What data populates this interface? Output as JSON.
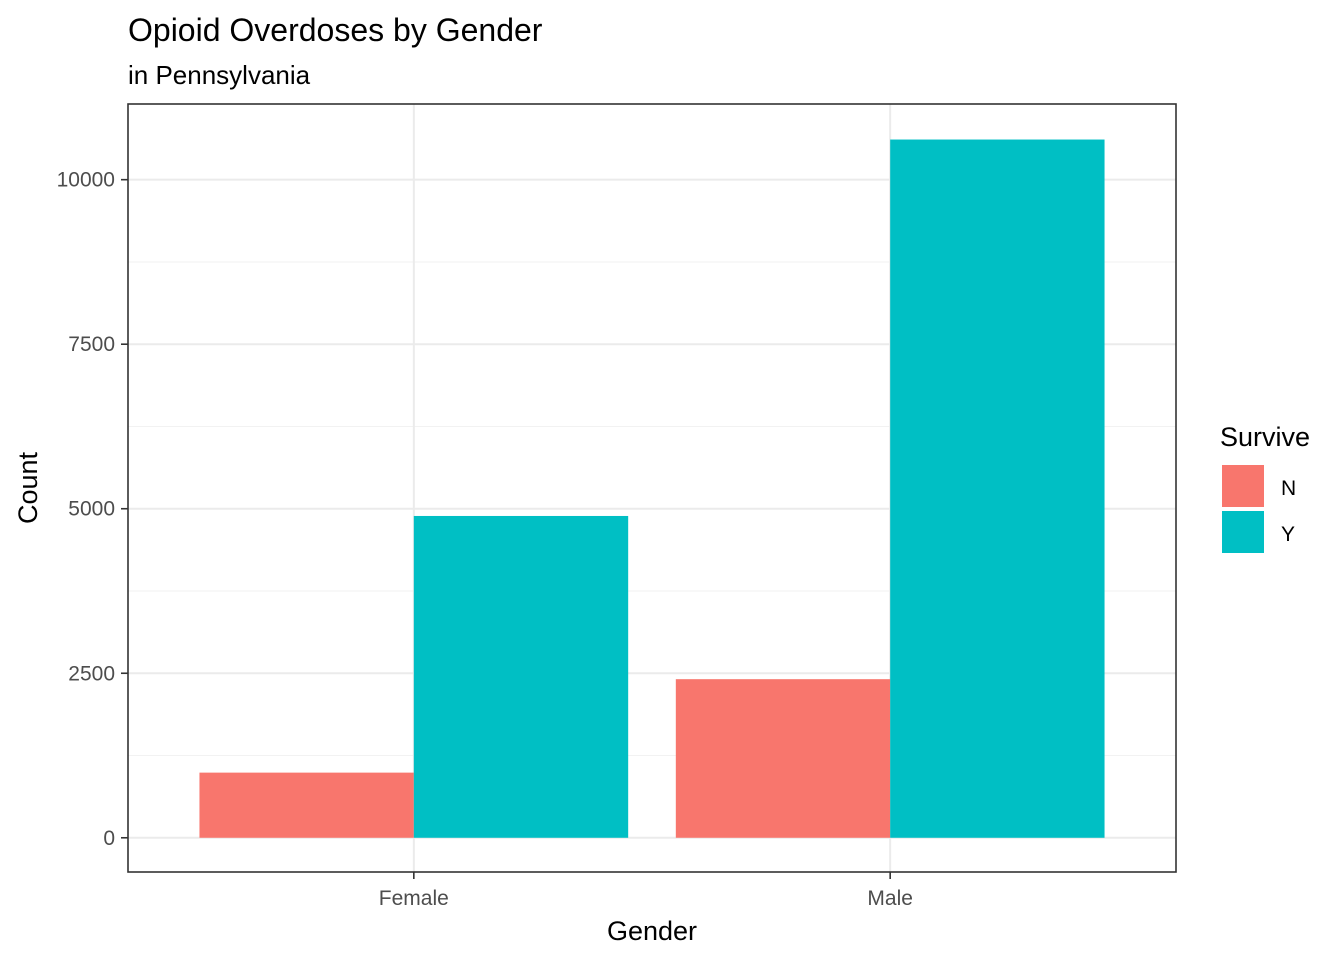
{
  "chart_data": {
    "type": "bar",
    "title": "Opioid Overdoses by Gender",
    "subtitle": "in Pennsylvania",
    "xlabel": "Gender",
    "ylabel": "Count",
    "categories": [
      "Female",
      "Male"
    ],
    "series": [
      {
        "name": "N",
        "color": "#F8766D",
        "values": [
          990,
          2410
        ]
      },
      {
        "name": "Y",
        "color": "#00BFC4",
        "values": [
          4890,
          10610
        ]
      }
    ],
    "ylim": [
      -520,
      11150
    ],
    "yticks": [
      0,
      2500,
      5000,
      7500,
      10000
    ],
    "yticks_minor": [
      1250,
      3750,
      6250,
      8750
    ],
    "grid": true,
    "legend": {
      "title": "Survive",
      "placement": "right"
    }
  }
}
